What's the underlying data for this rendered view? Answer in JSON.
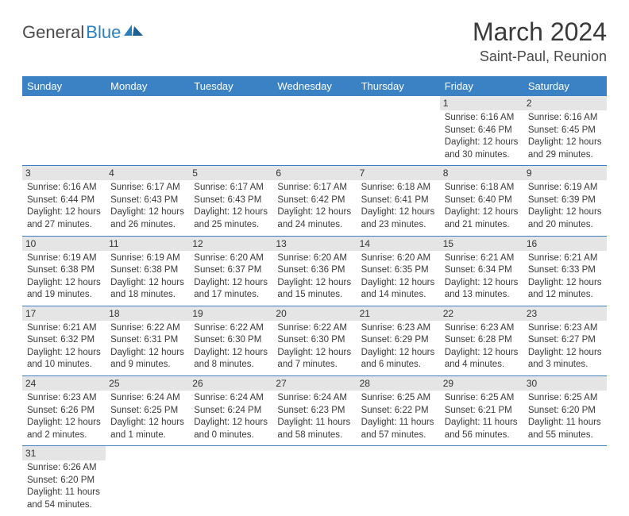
{
  "logo": {
    "text_dark": "General",
    "text_blue": "Blue"
  },
  "title": "March 2024",
  "location": "Saint-Paul, Reunion",
  "colors": {
    "header_bg": "#3b82c4",
    "header_fg": "#ffffff",
    "daynum_bg": "#e5e5e5",
    "border": "#3b82c4",
    "logo_blue": "#2a7fbf",
    "logo_dark": "#4a4a4a"
  },
  "day_headers": [
    "Sunday",
    "Monday",
    "Tuesday",
    "Wednesday",
    "Thursday",
    "Friday",
    "Saturday"
  ],
  "weeks": [
    [
      null,
      null,
      null,
      null,
      null,
      {
        "n": "1",
        "sr": "Sunrise: 6:16 AM",
        "ss": "Sunset: 6:46 PM",
        "d1": "Daylight: 12 hours",
        "d2": "and 30 minutes."
      },
      {
        "n": "2",
        "sr": "Sunrise: 6:16 AM",
        "ss": "Sunset: 6:45 PM",
        "d1": "Daylight: 12 hours",
        "d2": "and 29 minutes."
      }
    ],
    [
      {
        "n": "3",
        "sr": "Sunrise: 6:16 AM",
        "ss": "Sunset: 6:44 PM",
        "d1": "Daylight: 12 hours",
        "d2": "and 27 minutes."
      },
      {
        "n": "4",
        "sr": "Sunrise: 6:17 AM",
        "ss": "Sunset: 6:43 PM",
        "d1": "Daylight: 12 hours",
        "d2": "and 26 minutes."
      },
      {
        "n": "5",
        "sr": "Sunrise: 6:17 AM",
        "ss": "Sunset: 6:43 PM",
        "d1": "Daylight: 12 hours",
        "d2": "and 25 minutes."
      },
      {
        "n": "6",
        "sr": "Sunrise: 6:17 AM",
        "ss": "Sunset: 6:42 PM",
        "d1": "Daylight: 12 hours",
        "d2": "and 24 minutes."
      },
      {
        "n": "7",
        "sr": "Sunrise: 6:18 AM",
        "ss": "Sunset: 6:41 PM",
        "d1": "Daylight: 12 hours",
        "d2": "and 23 minutes."
      },
      {
        "n": "8",
        "sr": "Sunrise: 6:18 AM",
        "ss": "Sunset: 6:40 PM",
        "d1": "Daylight: 12 hours",
        "d2": "and 21 minutes."
      },
      {
        "n": "9",
        "sr": "Sunrise: 6:19 AM",
        "ss": "Sunset: 6:39 PM",
        "d1": "Daylight: 12 hours",
        "d2": "and 20 minutes."
      }
    ],
    [
      {
        "n": "10",
        "sr": "Sunrise: 6:19 AM",
        "ss": "Sunset: 6:38 PM",
        "d1": "Daylight: 12 hours",
        "d2": "and 19 minutes."
      },
      {
        "n": "11",
        "sr": "Sunrise: 6:19 AM",
        "ss": "Sunset: 6:38 PM",
        "d1": "Daylight: 12 hours",
        "d2": "and 18 minutes."
      },
      {
        "n": "12",
        "sr": "Sunrise: 6:20 AM",
        "ss": "Sunset: 6:37 PM",
        "d1": "Daylight: 12 hours",
        "d2": "and 17 minutes."
      },
      {
        "n": "13",
        "sr": "Sunrise: 6:20 AM",
        "ss": "Sunset: 6:36 PM",
        "d1": "Daylight: 12 hours",
        "d2": "and 15 minutes."
      },
      {
        "n": "14",
        "sr": "Sunrise: 6:20 AM",
        "ss": "Sunset: 6:35 PM",
        "d1": "Daylight: 12 hours",
        "d2": "and 14 minutes."
      },
      {
        "n": "15",
        "sr": "Sunrise: 6:21 AM",
        "ss": "Sunset: 6:34 PM",
        "d1": "Daylight: 12 hours",
        "d2": "and 13 minutes."
      },
      {
        "n": "16",
        "sr": "Sunrise: 6:21 AM",
        "ss": "Sunset: 6:33 PM",
        "d1": "Daylight: 12 hours",
        "d2": "and 12 minutes."
      }
    ],
    [
      {
        "n": "17",
        "sr": "Sunrise: 6:21 AM",
        "ss": "Sunset: 6:32 PM",
        "d1": "Daylight: 12 hours",
        "d2": "and 10 minutes."
      },
      {
        "n": "18",
        "sr": "Sunrise: 6:22 AM",
        "ss": "Sunset: 6:31 PM",
        "d1": "Daylight: 12 hours",
        "d2": "and 9 minutes."
      },
      {
        "n": "19",
        "sr": "Sunrise: 6:22 AM",
        "ss": "Sunset: 6:30 PM",
        "d1": "Daylight: 12 hours",
        "d2": "and 8 minutes."
      },
      {
        "n": "20",
        "sr": "Sunrise: 6:22 AM",
        "ss": "Sunset: 6:30 PM",
        "d1": "Daylight: 12 hours",
        "d2": "and 7 minutes."
      },
      {
        "n": "21",
        "sr": "Sunrise: 6:23 AM",
        "ss": "Sunset: 6:29 PM",
        "d1": "Daylight: 12 hours",
        "d2": "and 6 minutes."
      },
      {
        "n": "22",
        "sr": "Sunrise: 6:23 AM",
        "ss": "Sunset: 6:28 PM",
        "d1": "Daylight: 12 hours",
        "d2": "and 4 minutes."
      },
      {
        "n": "23",
        "sr": "Sunrise: 6:23 AM",
        "ss": "Sunset: 6:27 PM",
        "d1": "Daylight: 12 hours",
        "d2": "and 3 minutes."
      }
    ],
    [
      {
        "n": "24",
        "sr": "Sunrise: 6:23 AM",
        "ss": "Sunset: 6:26 PM",
        "d1": "Daylight: 12 hours",
        "d2": "and 2 minutes."
      },
      {
        "n": "25",
        "sr": "Sunrise: 6:24 AM",
        "ss": "Sunset: 6:25 PM",
        "d1": "Daylight: 12 hours",
        "d2": "and 1 minute."
      },
      {
        "n": "26",
        "sr": "Sunrise: 6:24 AM",
        "ss": "Sunset: 6:24 PM",
        "d1": "Daylight: 12 hours",
        "d2": "and 0 minutes."
      },
      {
        "n": "27",
        "sr": "Sunrise: 6:24 AM",
        "ss": "Sunset: 6:23 PM",
        "d1": "Daylight: 11 hours",
        "d2": "and 58 minutes."
      },
      {
        "n": "28",
        "sr": "Sunrise: 6:25 AM",
        "ss": "Sunset: 6:22 PM",
        "d1": "Daylight: 11 hours",
        "d2": "and 57 minutes."
      },
      {
        "n": "29",
        "sr": "Sunrise: 6:25 AM",
        "ss": "Sunset: 6:21 PM",
        "d1": "Daylight: 11 hours",
        "d2": "and 56 minutes."
      },
      {
        "n": "30",
        "sr": "Sunrise: 6:25 AM",
        "ss": "Sunset: 6:20 PM",
        "d1": "Daylight: 11 hours",
        "d2": "and 55 minutes."
      }
    ],
    [
      {
        "n": "31",
        "sr": "Sunrise: 6:26 AM",
        "ss": "Sunset: 6:20 PM",
        "d1": "Daylight: 11 hours",
        "d2": "and 54 minutes."
      },
      null,
      null,
      null,
      null,
      null,
      null
    ]
  ]
}
